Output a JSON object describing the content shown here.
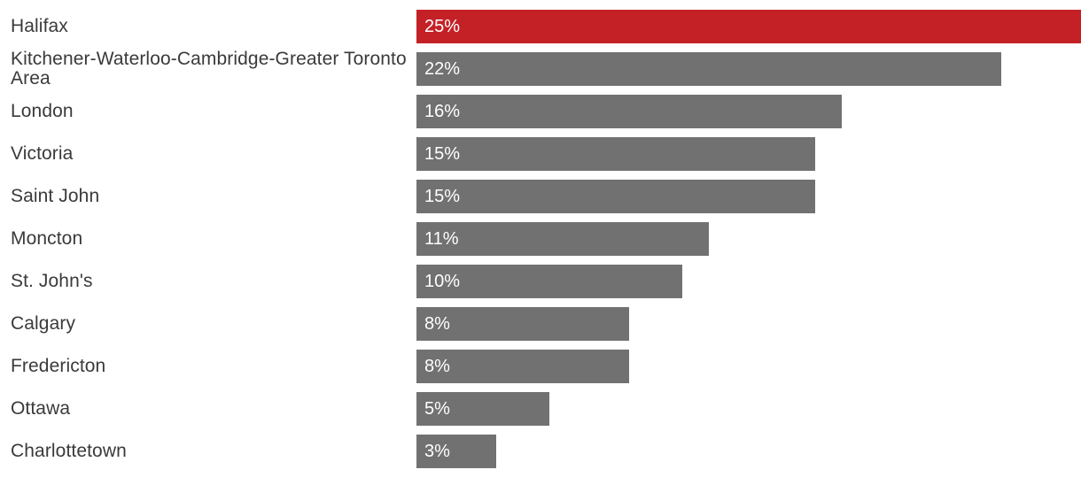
{
  "chart_data": {
    "type": "bar",
    "orientation": "horizontal",
    "categories": [
      "Halifax",
      "Kitchener-Waterloo-Cambridge-Greater Toronto Area",
      "London",
      "Victoria",
      "Saint John",
      "Moncton",
      "St. John's",
      "Calgary",
      "Fredericton",
      "Ottawa",
      "Charlottetown"
    ],
    "values": [
      25,
      22,
      16,
      15,
      15,
      11,
      10,
      8,
      8,
      5,
      3
    ],
    "value_labels": [
      "25%",
      "22%",
      "16%",
      "15%",
      "15%",
      "11%",
      "10%",
      "8%",
      "8%",
      "5%",
      "3%"
    ],
    "xlim": [
      0,
      25
    ],
    "title": "",
    "xlabel": "",
    "ylabel": "",
    "grid": false,
    "legend": false,
    "highlight_index": 0,
    "colors": {
      "highlight_bar": "#c42127",
      "default_bar": "#717171",
      "value_text": "#ffffff",
      "category_text": "#3a3a3a",
      "background": "#ffffff"
    }
  }
}
